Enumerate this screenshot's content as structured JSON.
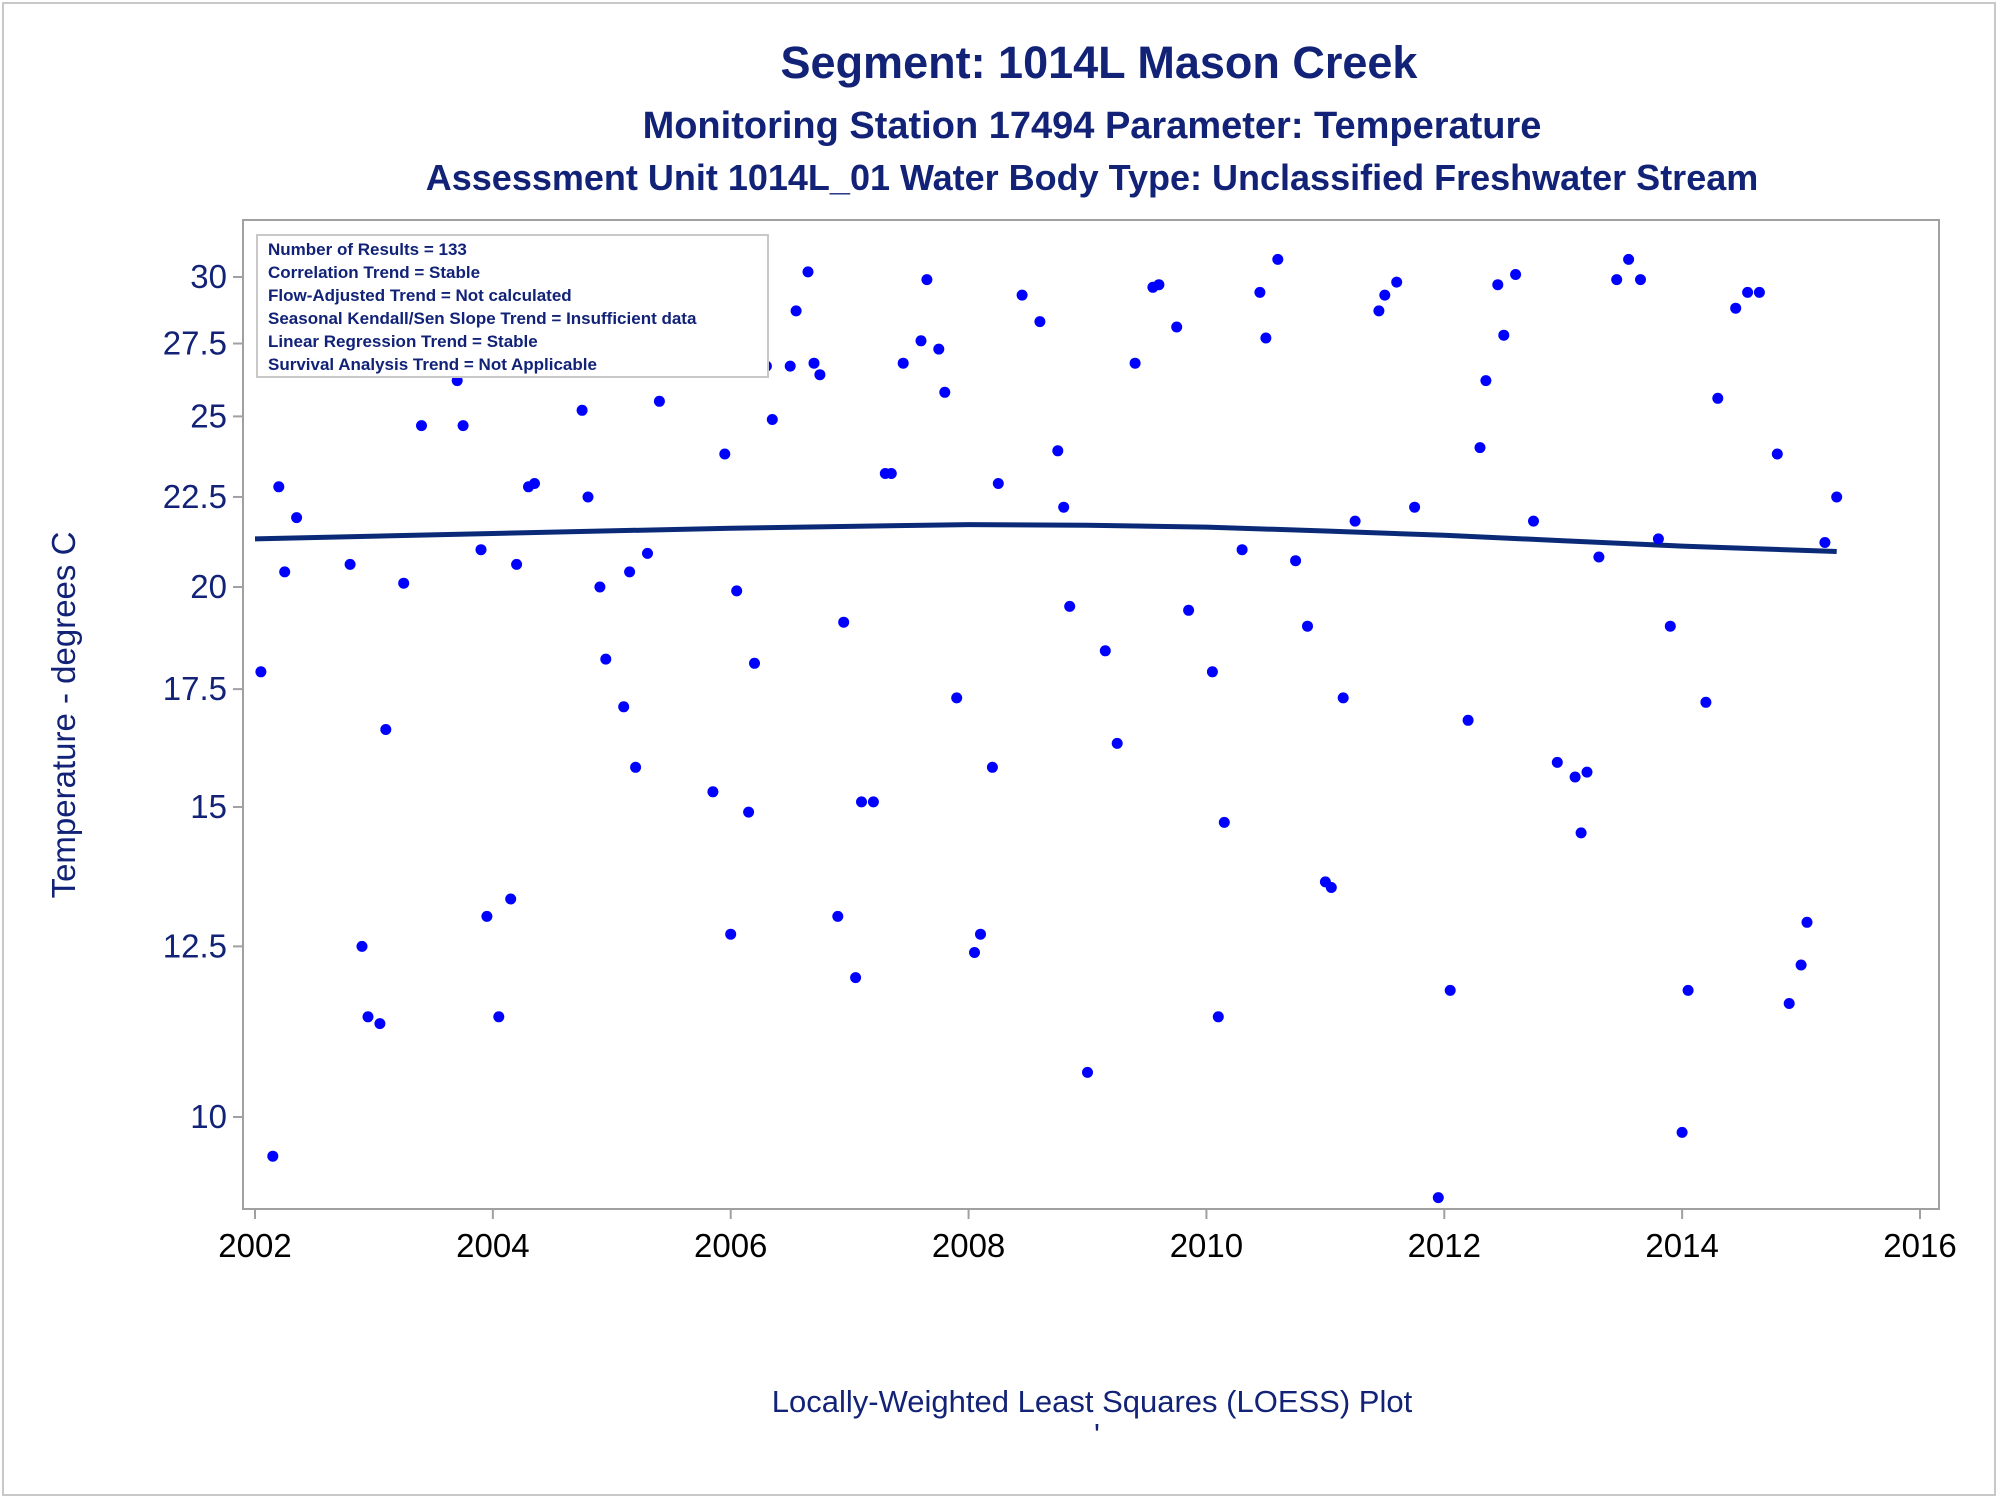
{
  "titles": {
    "line1": "Segment: 1014L  Mason Creek",
    "line2": "Monitoring Station 17494 Parameter: Temperature",
    "line3": "Assessment Unit 1014L_01   Water Body Type: Unclassified Freshwater Stream"
  },
  "inset": [
    "Number of Results = 133",
    "Correlation Trend = Stable",
    "Flow-Adjusted Trend = Not calculated",
    "Seasonal Kendall/Sen Slope Trend = Insufficient data",
    "Linear Regression Trend = Stable",
    "Survival Analysis Trend = Not Applicable"
  ],
  "footnote": "Locally-Weighted Least Squares (LOESS) Plot",
  "footnote_mark": "'",
  "colors": {
    "text": "#112277",
    "points": "#0000ff",
    "loess": "#0a2a78",
    "axis": "#a0a0a0"
  },
  "chart_data": {
    "type": "scatter",
    "ylabel": "Temperature - degrees C",
    "xlabel": "",
    "y_scale": "log",
    "xlim": [
      2002,
      2016
    ],
    "ylim": [
      9.0,
      31.2
    ],
    "x_ticks": [
      "2002",
      "2004",
      "2006",
      "2008",
      "2010",
      "2012",
      "2014",
      "2016"
    ],
    "y_ticks": [
      "10",
      "12.5",
      "15",
      "17.5",
      "20",
      "22.5",
      "25",
      "27.5",
      "30"
    ],
    "grid": false,
    "points": [
      [
        2002.05,
        17.9
      ],
      [
        2002.15,
        9.5
      ],
      [
        2002.2,
        22.8
      ],
      [
        2002.25,
        20.4
      ],
      [
        2002.35,
        21.9
      ],
      [
        2002.45,
        28.3
      ],
      [
        2002.5,
        31.2
      ],
      [
        2002.6,
        26.6
      ],
      [
        2002.7,
        26.8
      ],
      [
        2002.8,
        20.6
      ],
      [
        2002.9,
        12.5
      ],
      [
        2002.95,
        11.4
      ],
      [
        2003.05,
        11.3
      ],
      [
        2003.1,
        16.6
      ],
      [
        2003.25,
        20.1
      ],
      [
        2003.4,
        24.7
      ],
      [
        2003.5,
        28.0
      ],
      [
        2003.55,
        28.5
      ],
      [
        2003.6,
        27.7
      ],
      [
        2003.7,
        26.2
      ],
      [
        2003.75,
        24.7
      ],
      [
        2003.9,
        21.0
      ],
      [
        2003.95,
        13.0
      ],
      [
        2004.05,
        11.4
      ],
      [
        2004.15,
        13.3
      ],
      [
        2004.2,
        20.6
      ],
      [
        2004.3,
        22.8
      ],
      [
        2004.35,
        22.9
      ],
      [
        2004.5,
        28.0
      ],
      [
        2004.55,
        29.9
      ],
      [
        2004.6,
        30.6
      ],
      [
        2004.75,
        25.2
      ],
      [
        2004.8,
        22.5
      ],
      [
        2004.9,
        20.0
      ],
      [
        2004.95,
        18.2
      ],
      [
        2005.1,
        17.1
      ],
      [
        2005.15,
        20.4
      ],
      [
        2005.2,
        15.8
      ],
      [
        2005.3,
        20.9
      ],
      [
        2005.4,
        25.5
      ],
      [
        2005.8,
        27.9
      ],
      [
        2005.85,
        15.3
      ],
      [
        2005.95,
        23.8
      ],
      [
        2006.0,
        12.7
      ],
      [
        2006.05,
        19.9
      ],
      [
        2006.15,
        14.9
      ],
      [
        2006.2,
        18.1
      ],
      [
        2006.3,
        26.7
      ],
      [
        2006.35,
        24.9
      ],
      [
        2006.5,
        26.7
      ],
      [
        2006.55,
        28.7
      ],
      [
        2006.65,
        30.2
      ],
      [
        2006.7,
        26.8
      ],
      [
        2006.75,
        26.4
      ],
      [
        2006.9,
        13.0
      ],
      [
        2006.95,
        19.1
      ],
      [
        2007.05,
        12.0
      ],
      [
        2007.1,
        15.1
      ],
      [
        2007.2,
        15.1
      ],
      [
        2007.3,
        23.2
      ],
      [
        2007.35,
        23.2
      ],
      [
        2007.45,
        26.8
      ],
      [
        2007.6,
        27.6
      ],
      [
        2007.65,
        29.9
      ],
      [
        2007.75,
        27.3
      ],
      [
        2007.8,
        25.8
      ],
      [
        2007.9,
        17.3
      ],
      [
        2008.05,
        12.4
      ],
      [
        2008.1,
        12.7
      ],
      [
        2008.2,
        15.8
      ],
      [
        2008.25,
        22.9
      ],
      [
        2008.45,
        29.3
      ],
      [
        2008.6,
        28.3
      ],
      [
        2008.75,
        23.9
      ],
      [
        2008.8,
        22.2
      ],
      [
        2008.85,
        19.5
      ],
      [
        2009.0,
        10.6
      ],
      [
        2009.15,
        18.4
      ],
      [
        2009.25,
        16.3
      ],
      [
        2009.4,
        26.8
      ],
      [
        2009.55,
        29.6
      ],
      [
        2009.6,
        29.7
      ],
      [
        2009.75,
        28.1
      ],
      [
        2009.85,
        19.4
      ],
      [
        2010.05,
        17.9
      ],
      [
        2010.1,
        11.4
      ],
      [
        2010.15,
        14.7
      ],
      [
        2010.3,
        21.0
      ],
      [
        2010.45,
        29.4
      ],
      [
        2010.5,
        27.7
      ],
      [
        2010.6,
        30.7
      ],
      [
        2010.75,
        20.7
      ],
      [
        2010.85,
        19.0
      ],
      [
        2011.0,
        13.6
      ],
      [
        2011.05,
        13.5
      ],
      [
        2011.15,
        17.3
      ],
      [
        2011.25,
        21.8
      ],
      [
        2011.45,
        28.7
      ],
      [
        2011.5,
        29.3
      ],
      [
        2011.6,
        29.8
      ],
      [
        2011.75,
        22.2
      ],
      [
        2011.95,
        9.0
      ],
      [
        2012.05,
        11.8
      ],
      [
        2012.2,
        16.8
      ],
      [
        2012.3,
        24.0
      ],
      [
        2012.35,
        26.2
      ],
      [
        2012.45,
        29.7
      ],
      [
        2012.5,
        27.8
      ],
      [
        2012.6,
        30.1
      ],
      [
        2012.75,
        21.8
      ],
      [
        2012.95,
        15.9
      ],
      [
        2013.1,
        15.6
      ],
      [
        2013.15,
        14.5
      ],
      [
        2013.2,
        15.7
      ],
      [
        2013.3,
        20.8
      ],
      [
        2013.45,
        29.9
      ],
      [
        2013.55,
        30.7
      ],
      [
        2013.65,
        29.9
      ],
      [
        2013.8,
        21.3
      ],
      [
        2013.9,
        19.0
      ],
      [
        2014.0,
        9.8
      ],
      [
        2014.05,
        11.8
      ],
      [
        2014.2,
        17.2
      ],
      [
        2014.3,
        25.6
      ],
      [
        2014.45,
        28.8
      ],
      [
        2014.55,
        29.4
      ],
      [
        2014.65,
        29.4
      ],
      [
        2014.8,
        23.8
      ],
      [
        2014.9,
        11.6
      ],
      [
        2015.0,
        12.2
      ],
      [
        2015.05,
        12.9
      ],
      [
        2015.2,
        21.2
      ],
      [
        2015.3,
        22.5
      ]
    ],
    "loess": {
      "x": [
        2002.0,
        2004.0,
        2006.0,
        2007.0,
        2008.0,
        2009.0,
        2010.0,
        2011.0,
        2012.0,
        2013.0,
        2014.0,
        2015.3
      ],
      "y": [
        21.3,
        21.45,
        21.6,
        21.65,
        21.7,
        21.68,
        21.63,
        21.52,
        21.4,
        21.25,
        21.1,
        20.95
      ]
    }
  }
}
